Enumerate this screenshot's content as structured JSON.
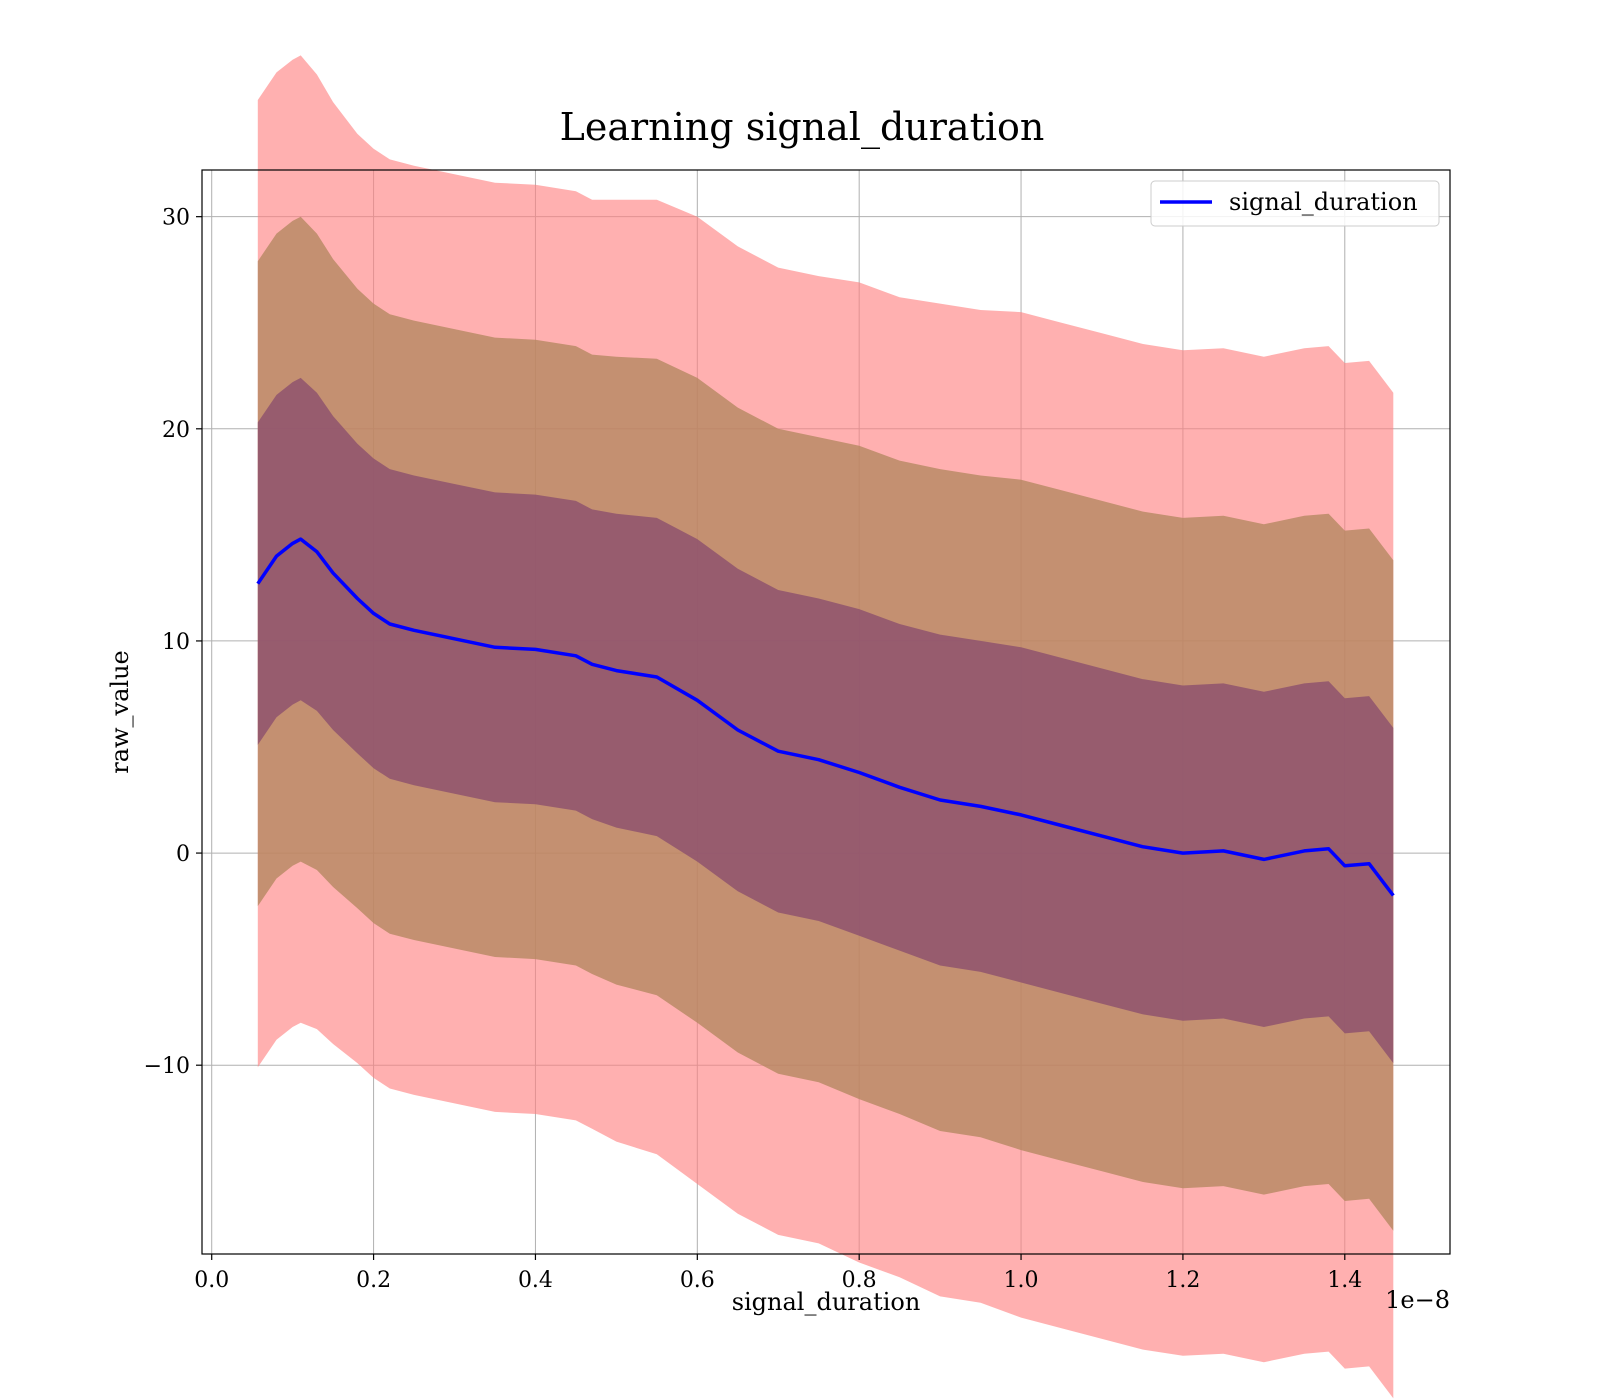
{
  "chart_data": {
    "type": "line",
    "title": "Learning signal_duration",
    "xlabel": "signal_duration",
    "ylabel": "raw_value",
    "x_offset_label": "1e−8",
    "xlim": [
      -0.012,
      1.53
    ],
    "ylim": [
      -18.9,
      32.2
    ],
    "x_ticks": [
      0.0,
      0.2,
      0.4,
      0.6,
      0.8,
      1.0,
      1.2,
      1.4
    ],
    "x_tick_labels": [
      "0.0",
      "0.2",
      "0.4",
      "0.6",
      "0.8",
      "1.0",
      "1.2",
      "1.4"
    ],
    "y_ticks": [
      -10,
      0,
      10,
      20,
      30
    ],
    "y_tick_labels": [
      "−10",
      "0",
      "10",
      "20",
      "30"
    ],
    "grid": true,
    "legend": {
      "position": "top-right",
      "entries": [
        "signal_duration"
      ]
    },
    "colors": {
      "line": "#0000ff",
      "band_3sigma": "#ff8080",
      "band_2sigma": "#b3875f",
      "band_1sigma": "#8c4f6e"
    },
    "x": [
      0.057,
      0.08,
      0.1,
      0.11,
      0.13,
      0.15,
      0.18,
      0.2,
      0.22,
      0.25,
      0.3,
      0.35,
      0.4,
      0.45,
      0.47,
      0.5,
      0.55,
      0.6,
      0.65,
      0.7,
      0.75,
      0.8,
      0.85,
      0.9,
      0.95,
      1.0,
      1.05,
      1.1,
      1.15,
      1.2,
      1.25,
      1.3,
      1.35,
      1.38,
      1.4,
      1.43,
      1.46
    ],
    "series": [
      {
        "name": "signal_duration",
        "mean": [
          12.7,
          14.0,
          14.6,
          14.8,
          14.2,
          13.2,
          12.0,
          11.3,
          10.8,
          10.5,
          10.1,
          9.7,
          9.6,
          9.3,
          8.9,
          8.6,
          8.3,
          7.2,
          5.8,
          4.8,
          4.4,
          3.8,
          3.1,
          2.5,
          2.2,
          1.8,
          1.3,
          0.8,
          0.3,
          0.0,
          0.1,
          -0.3,
          0.1,
          0.2,
          -0.6,
          -0.5,
          -2.0
        ],
        "sigma": [
          7.6,
          7.6,
          7.6,
          7.6,
          7.5,
          7.4,
          7.3,
          7.3,
          7.3,
          7.3,
          7.3,
          7.3,
          7.3,
          7.3,
          7.3,
          7.4,
          7.5,
          7.6,
          7.6,
          7.6,
          7.6,
          7.7,
          7.7,
          7.8,
          7.8,
          7.9,
          7.9,
          7.9,
          7.9,
          7.9,
          7.9,
          7.9,
          7.9,
          7.9,
          7.9,
          7.9,
          7.9
        ]
      }
    ]
  }
}
